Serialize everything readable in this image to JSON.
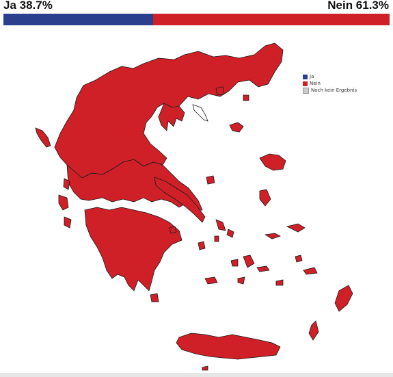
{
  "result": {
    "yes_label": "Ja 38.7%",
    "no_label": "Nein 61.3%",
    "yes_percent": 38.7,
    "no_percent": 61.3,
    "yes_color": "#2b3f8f",
    "no_color": "#cf2027"
  },
  "legend": {
    "items": [
      {
        "label": "Ja",
        "color": "#2b3f8f"
      },
      {
        "label": "Nein",
        "color": "#cf2027"
      },
      {
        "label": "Noch kein Ergebnis",
        "color": "#cccccc"
      }
    ]
  },
  "map": {
    "fill_color": "#cf2027",
    "border_color": "#1a1a1a",
    "no_result_color": "#ffffff"
  }
}
